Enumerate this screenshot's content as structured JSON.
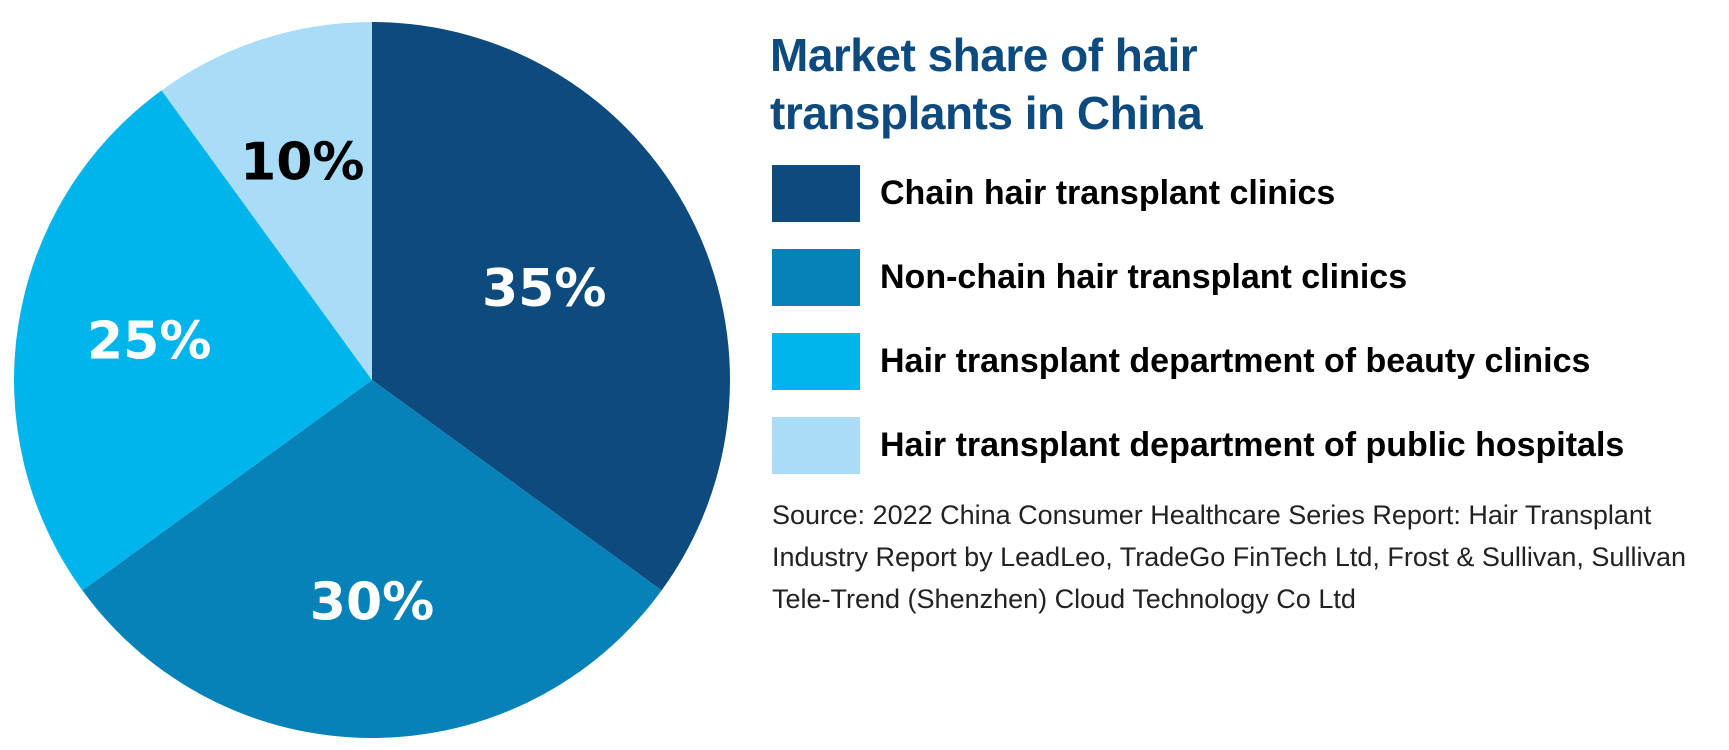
{
  "chart_data": {
    "type": "pie",
    "title": "Market share of hair transplants in China",
    "categories": [
      "Chain hair transplant clinics",
      "Non-chain hair transplant clinics",
      "Hair transplant department of beauty clinics",
      "Hair transplant department of public hospitals"
    ],
    "values": [
      35,
      30,
      25,
      10
    ],
    "labels": [
      "35%",
      "30%",
      "25%",
      "10%"
    ],
    "colors": [
      "#0d4a7e",
      "#0782b8",
      "#00b5eb",
      "#a8dcf7"
    ],
    "label_colors": [
      "#ffffff",
      "#ffffff",
      "#ffffff",
      "#000000"
    ],
    "legend_position": "right",
    "source": "Source: 2022 China Consumer Healthcare Series Report: Hair Transplant Industry Report by LeadLeo, TradeGo FinTech Ltd, Frost & Sullivan, Sullivan Tele-Trend (Shenzhen) Cloud Technology Co Ltd"
  }
}
